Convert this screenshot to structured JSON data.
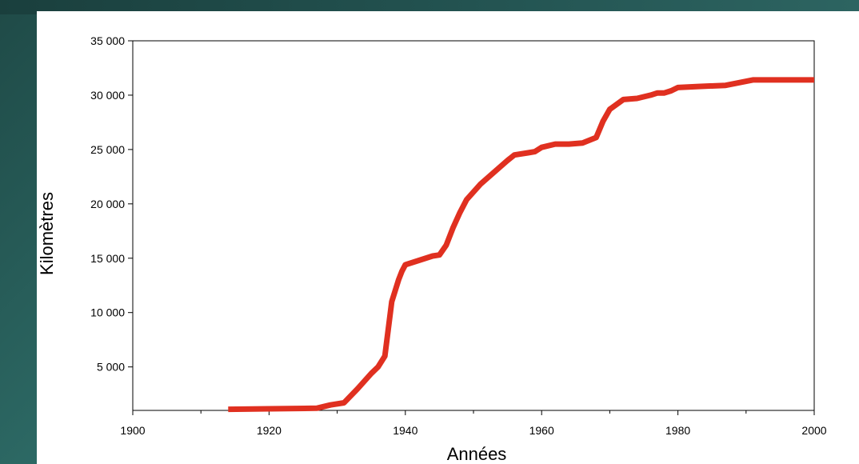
{
  "chart_data": {
    "type": "line",
    "title": "",
    "xlabel": "Années",
    "ylabel": "Kilomètres",
    "xlim": [
      1900,
      2000
    ],
    "ylim": [
      1000,
      35000
    ],
    "x_ticks": [
      1900,
      1920,
      1940,
      1960,
      1980,
      2000
    ],
    "x_tick_labels": [
      "1900",
      "1920",
      "1940",
      "1960",
      "1980",
      "2000"
    ],
    "y_ticks": [
      5000,
      10000,
      15000,
      20000,
      25000,
      30000,
      35000
    ],
    "y_tick_labels": [
      "5 000",
      "10 000",
      "15 000",
      "20 000",
      "25 000",
      "30 000",
      "35 000"
    ],
    "grid": false,
    "series": [
      {
        "color": "#e03020",
        "x": [
          1914,
          1920,
          1927,
          1929,
          1931,
          1933,
          1935,
          1936,
          1937,
          1937.5,
          1938,
          1939,
          1939.5,
          1940,
          1942,
          1944,
          1945,
          1946,
          1947,
          1948,
          1949,
          1951,
          1953,
          1955,
          1956,
          1958,
          1959,
          1960,
          1962,
          1964,
          1966,
          1968,
          1969,
          1970,
          1972,
          1974,
          1976,
          1977,
          1978,
          1979,
          1980,
          1983,
          1987,
          1991,
          1995,
          2000
        ],
        "y": [
          1100,
          1150,
          1200,
          1500,
          1700,
          3000,
          4400,
          5000,
          6000,
          8500,
          11000,
          13000,
          13800,
          14400,
          14800,
          15200,
          15300,
          16200,
          17800,
          19200,
          20400,
          21800,
          22900,
          24000,
          24500,
          24700,
          24800,
          25200,
          25500,
          25500,
          25600,
          26100,
          27600,
          28700,
          29600,
          29700,
          30000,
          30200,
          30200,
          30400,
          30700,
          30800,
          30900,
          31400,
          31400,
          31400
        ]
      }
    ]
  }
}
